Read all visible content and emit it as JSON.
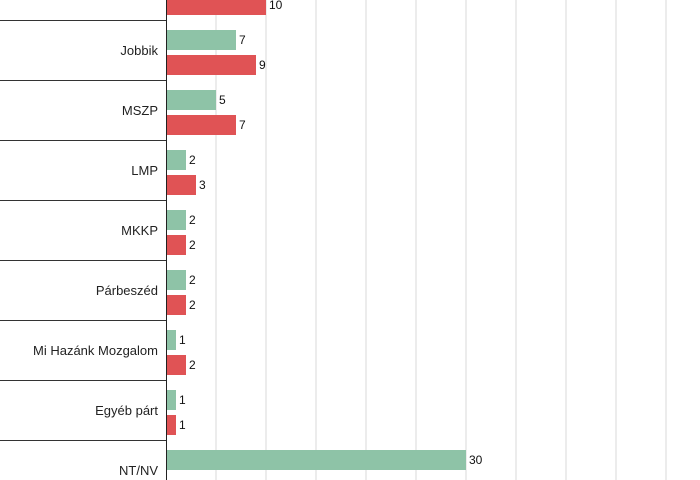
{
  "chart_data": {
    "type": "bar",
    "orientation": "horizontal",
    "categories": [
      "",
      "Jobbik",
      "MSZP",
      "LMP",
      "MKKP",
      "Párbeszéd",
      "Mi Hazánk Mozgalom",
      "Egyéb párt",
      "NT/NV"
    ],
    "series": [
      {
        "color": "#8ec3a7",
        "values": [
          null,
          7,
          5,
          2,
          2,
          2,
          1,
          1,
          30
        ]
      },
      {
        "color": "#e05355",
        "values": [
          10,
          9,
          7,
          3,
          2,
          2,
          2,
          1,
          null
        ]
      }
    ],
    "xlim": [
      0,
      50
    ],
    "grid": true,
    "legend": "none"
  }
}
